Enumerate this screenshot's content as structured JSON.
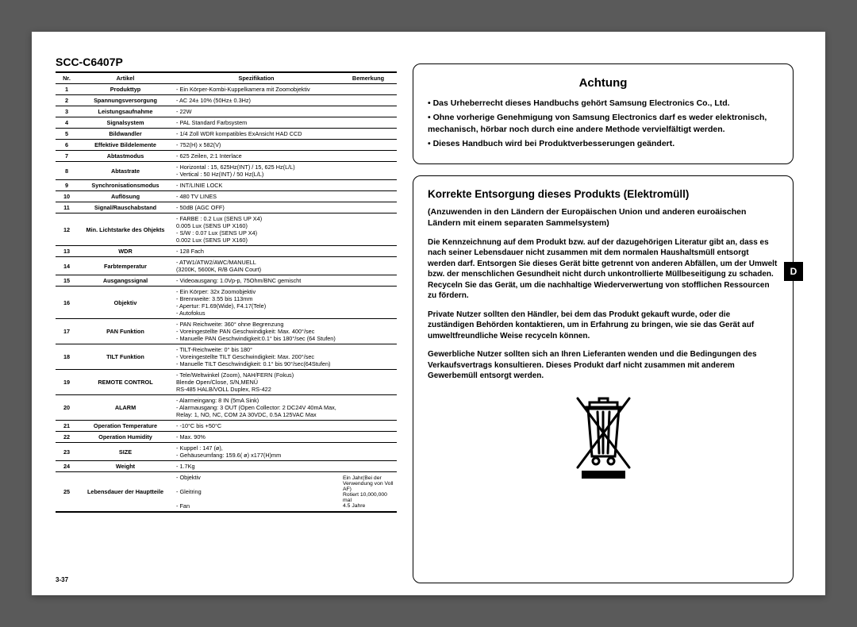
{
  "left": {
    "model": "SCC-C6407P",
    "page_num": "3-37",
    "headers": {
      "nr": "Nr.",
      "artikel": "Artikel",
      "spez": "Spezifikation",
      "bem": "Bemerkung"
    },
    "rows": [
      {
        "n": "1",
        "a": "Produkttyp",
        "s": "- Ein Körper-Kombi-Kuppelkamera mit Zoomobjektiv",
        "b": ""
      },
      {
        "n": "2",
        "a": "Spannungsversorgung",
        "s": "- AC 24± 10% (50Hz± 0.3Hz)",
        "b": ""
      },
      {
        "n": "3",
        "a": "Leistungsaufnahme",
        "s": "- 22W",
        "b": ""
      },
      {
        "n": "4",
        "a": "Signalsystem",
        "s": "- PAL Standard Farbsystem",
        "b": ""
      },
      {
        "n": "5",
        "a": "Bildwandler",
        "s": "- 1/4 Zoll WDR kompatibles ExAnsicht HAD CCD",
        "b": ""
      },
      {
        "n": "6",
        "a": "Effektive Bildelemente",
        "s": "- 752(H) x 582(V)",
        "b": ""
      },
      {
        "n": "7",
        "a": "Abtastmodus",
        "s": "- 625 Zeilen, 2:1 Interlace",
        "b": ""
      },
      {
        "n": "8",
        "a": "Abtastrate",
        "s": "- Horizontal : 15, 625Hz(INT) / 15, 625 Hz(L/L)\n- Vertical      : 50 Hz(INT) / 50 Hz(L/L)",
        "b": ""
      },
      {
        "n": "9",
        "a": "Synchronisationsmodus",
        "s": "- INT/LINIE LOCK",
        "b": ""
      },
      {
        "n": "10",
        "a": "Auflösung",
        "s": "- 480 TV LINES",
        "b": ""
      },
      {
        "n": "11",
        "a": "Signal/Rauschabstand",
        "s": "- 50dB (AGC OFF)",
        "b": ""
      },
      {
        "n": "12",
        "a": "Min. Lichtstarke des Ohjekts",
        "s": "- FARBE : 0.2 Lux (SENS UP X4)\n                0.005 Lux (SENS UP X160)\n- S/W     : 0.07 Lux (SENS UP X4)\n                0.002 Lux (SENS UP X160)",
        "b": ""
      },
      {
        "n": "13",
        "a": "WDR",
        "s": "- 128 Fach",
        "b": ""
      },
      {
        "n": "14",
        "a": "Farbtemperatur",
        "s": "- ATW1/ATW2/AWC/MANUELL\n  (3200K, 5600K, R/B GAIN Court)",
        "b": ""
      },
      {
        "n": "15",
        "a": "Ausgangssignal",
        "s": "- Videoausgang: 1.0Vp-p, 75Ohm/BNC gemischt",
        "b": ""
      },
      {
        "n": "16",
        "a": "Objektiv",
        "s": "- Ein Körper: 32x Zoomobjektiv\n- Brennweite: 3.55 bis 113mm\n- Apertur: F1.69(Wide), F4.17(Tele)\n- Autofokus",
        "b": ""
      },
      {
        "n": "17",
        "a": "PAN Funktion",
        "s": "- PAN Reichweite: 360° ohne Begrenzung\n- Voreingestellte PAN Geschwindigkeit: Max. 400°/sec\n- Manuelle PAN Geschwindigkeit:0.1° bis 180°/sec (64 Stufen)",
        "b": ""
      },
      {
        "n": "18",
        "a": "TILT Funktion",
        "s": "- TILT-Reichweite: 0° bis 180°\n- Voreingestellte TILT Geschwindigkeit: Max. 200°/sec\n- Manuelle TILT Geschwindigkeit: 0.1° bis 90°/sec(64Stufen)",
        "b": ""
      },
      {
        "n": "19",
        "a": "REMOTE CONTROL",
        "s": "- Tele/Weltwinkel (Zoom), NAH/FERN (Fokus)\n  Blende Open/Close, S/N,MENÜ\n  RS-485 HALB/VOLL Duplex, RS-422",
        "b": ""
      },
      {
        "n": "20",
        "a": "ALARM",
        "s": "- Alarmeingang: 8 IN (5mA Sink)\n- Alarmausgang: 3 OUT (Open Collector: 2 DC24V 40mA Max,\n  Relay: 1, NO, NC, COM 2A 30VDC, 0.5A 125VAC Max",
        "b": ""
      },
      {
        "n": "21",
        "a": "Operation Temperature",
        "s": "- -10°C bis +50°C",
        "b": ""
      },
      {
        "n": "22",
        "a": "Operation Humidity",
        "s": "- Max. 90%",
        "b": ""
      },
      {
        "n": "23",
        "a": "SIZE",
        "s": "- Kuppel : 147 (ø),\n- Gehäuseumfang: 159.6( ø) x177(H)mm",
        "b": ""
      },
      {
        "n": "24",
        "a": "Weight",
        "s": "- 1.7Kg",
        "b": ""
      },
      {
        "n": "25",
        "a": "Lebensdauer der Hauptteile",
        "s": "- Objektiv\n\n- Gleitring\n\n- Fan",
        "b": "Ein Jahr(Bei der Verwendung von Voll AF)\nRotiert 10,000,000 mal\n4.5 Jahre"
      }
    ]
  },
  "right": {
    "lang_tab": "D",
    "achtung": {
      "title": "Achtung",
      "p1": "• Das Urheberrecht dieses Handbuchs gehört Samsung Electronics Co., Ltd.",
      "p2": "• Ohne vorherige Genehmigung von Samsung Electronics darf es weder elektronisch, mechanisch, hörbar noch durch eine andere Methode vervielfältigt werden.",
      "p3": "• Dieses Handbuch wird bei Produktverbesserungen geändert."
    },
    "disposal": {
      "title": "Korrekte Entsorgung dieses Produkts (Elektromüll)",
      "sub": "(Anzuwenden in den Ländern der Europäischen Union und anderen euroäischen Ländern mit einem separaten Sammelsystem)",
      "p1": "Die Kennzeichnung auf dem Produkt bzw. auf der dazugehörigen Literatur gibt an, dass es nach seiner Lebensdauer nicht zusammen mit dem normalen Haushaltsmüll entsorgt werden darf. Entsorgen Sie dieses Gerät bitte getrennt von anderen Abfällen, um der Umwelt bzw. der menschlichen Gesundheit nicht durch unkontrollierte Müllbeseitigung zu schaden. Recyceln Sie das Gerät, um die nachhaltige Wiederverwertung von stofflichen Ressourcen zu fördern.",
      "p2": "Private Nutzer sollten den Händler, bei dem das Produkt gekauft wurde, oder die zuständigen Behörden kontaktieren, um in Erfahrung zu bringen, wie sie das Gerät auf umweltfreundliche Weise recyceln können.",
      "p3": "Gewerbliche Nutzer sollten sich an Ihren Lieferanten wenden und die Bedingungen des Verkaufsvertrags konsultieren. Dieses Produkt darf nicht zusammen mit anderem Gewerbemüll entsorgt werden."
    }
  }
}
